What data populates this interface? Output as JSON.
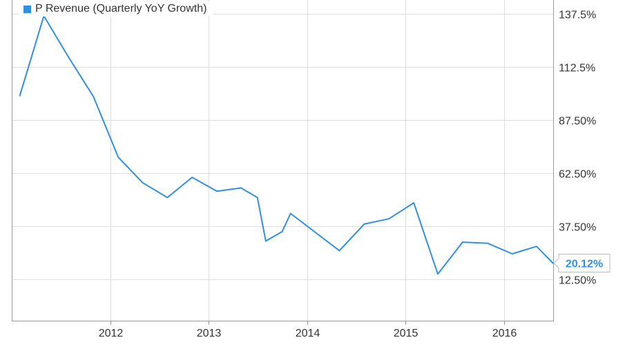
{
  "legend": {
    "label": "P Revenue (Quarterly YoY Growth)"
  },
  "colors": {
    "series": "#2e8fe3",
    "grid": "#dddddd",
    "axis": "#999999",
    "text": "#333333"
  },
  "chart_data": {
    "type": "line",
    "title": "",
    "xlabel": "",
    "ylabel": "",
    "xlim": [
      "2011-01-01",
      "2016-07-01"
    ],
    "ylim": [
      -7,
      144
    ],
    "x_ticks": [
      {
        "date": "2012-01-01",
        "label": "2012"
      },
      {
        "date": "2013-01-01",
        "label": "2013"
      },
      {
        "date": "2014-01-01",
        "label": "2014"
      },
      {
        "date": "2015-01-01",
        "label": "2015"
      },
      {
        "date": "2016-01-01",
        "label": "2016"
      }
    ],
    "y_ticks": [
      {
        "value": 12.5,
        "label": "12.50%"
      },
      {
        "value": 37.5,
        "label": "37.50%"
      },
      {
        "value": 62.5,
        "label": "62.50%"
      },
      {
        "value": 87.5,
        "label": "87.50%"
      },
      {
        "value": 112.5,
        "label": "112.5%"
      },
      {
        "value": 137.5,
        "label": "137.5%"
      }
    ],
    "grid": true,
    "legend_position": "top-left",
    "series": [
      {
        "name": "P Revenue (Quarterly YoY Growth)",
        "points": [
          {
            "date": "2011-01-31",
            "value": 99
          },
          {
            "date": "2011-04-30",
            "value": 136.5
          },
          {
            "date": "2011-07-31",
            "value": 117
          },
          {
            "date": "2011-10-31",
            "value": 98.5
          },
          {
            "date": "2012-01-31",
            "value": 70
          },
          {
            "date": "2012-04-30",
            "value": 58
          },
          {
            "date": "2012-07-31",
            "value": 51
          },
          {
            "date": "2012-10-31",
            "value": 60.5
          },
          {
            "date": "2013-01-31",
            "value": 54
          },
          {
            "date": "2013-04-30",
            "value": 55.5
          },
          {
            "date": "2013-06-30",
            "value": 51
          },
          {
            "date": "2013-07-31",
            "value": 30.5
          },
          {
            "date": "2013-09-30",
            "value": 35
          },
          {
            "date": "2013-10-31",
            "value": 43.5
          },
          {
            "date": "2014-04-30",
            "value": 26
          },
          {
            "date": "2014-07-31",
            "value": 38.5
          },
          {
            "date": "2014-10-31",
            "value": 41
          },
          {
            "date": "2015-01-31",
            "value": 48.5
          },
          {
            "date": "2015-04-30",
            "value": 15
          },
          {
            "date": "2015-07-31",
            "value": 30
          },
          {
            "date": "2015-10-31",
            "value": 29.5
          },
          {
            "date": "2016-01-31",
            "value": 24.5
          },
          {
            "date": "2016-04-30",
            "value": 28
          },
          {
            "date": "2016-06-30",
            "value": 20.12
          }
        ]
      }
    ],
    "last_value_label": "20.12%"
  }
}
